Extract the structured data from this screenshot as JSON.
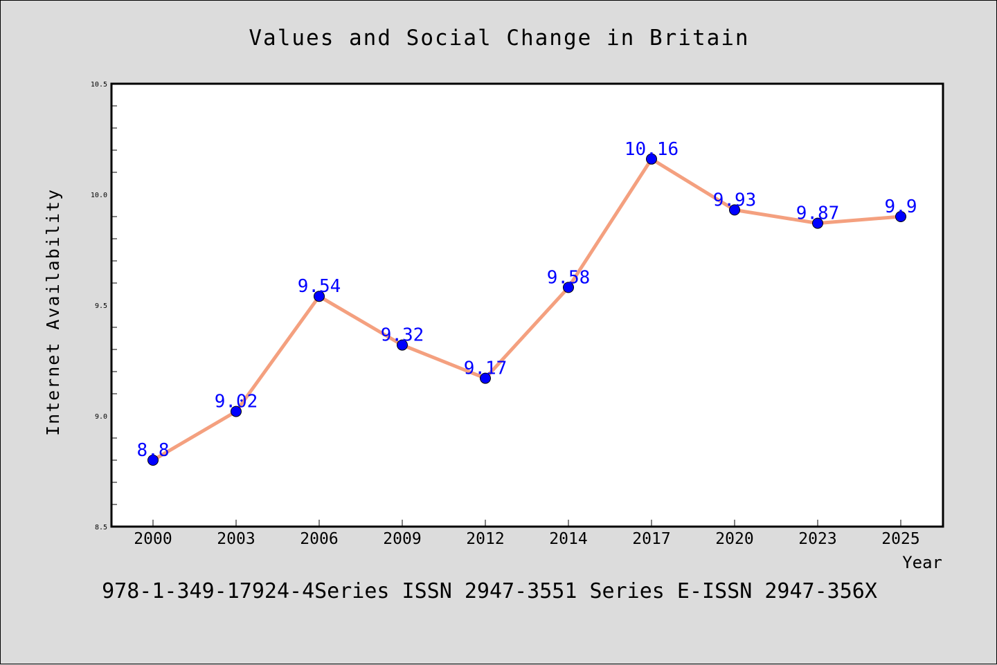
{
  "chart_data": {
    "type": "line",
    "title": "Values and Social Change in Britain",
    "xlabel": "Year",
    "ylabel": "Internet Availability",
    "categories": [
      "2000",
      "2003",
      "2006",
      "2009",
      "2012",
      "2014",
      "2017",
      "2020",
      "2023",
      "2025"
    ],
    "series": [
      {
        "values": [
          8.8,
          9.02,
          9.54,
          9.32,
          9.17,
          9.58,
          10.16,
          9.93,
          9.87,
          9.9
        ]
      }
    ],
    "data_labels": [
      "8.8",
      "9.02",
      "9.54",
      "9.32",
      "9.17",
      "9.58",
      "10.16",
      "9.93",
      "9.87",
      "9.9"
    ],
    "ylim": [
      8.5,
      10.5
    ],
    "yticks": [
      "8.5",
      "9.0",
      "9.5",
      "10.0",
      "10.5"
    ],
    "grid": false,
    "line_color": "#f4a07f",
    "marker_color": "#0000ff",
    "label_color": "#0000ff",
    "background_color": "#dcdcdc",
    "plot_background": "#ffffff"
  },
  "footer": "978-1-349-17924-4Series ISSN 2947-3551 Series E-ISSN 2947-356X"
}
